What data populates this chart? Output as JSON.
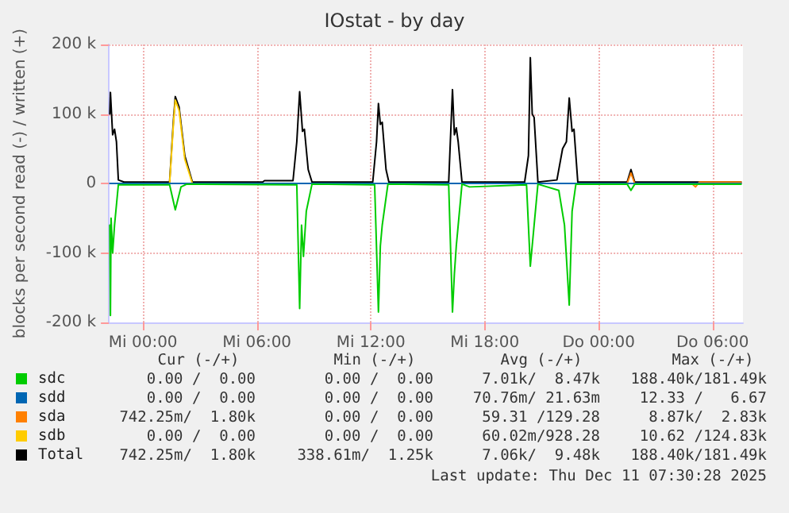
{
  "chart_data": {
    "type": "line",
    "title": "IOstat - by day",
    "ylabel": "blocks per second read (-) / written (+)",
    "xlim": [
      "2025-12-09T22:12",
      "2025-12-11T07:36"
    ],
    "xticks": [
      {
        "value": "2025-12-10T00:00",
        "label": "Mi 00:00"
      },
      {
        "value": "2025-12-10T06:00",
        "label": "Mi 06:00"
      },
      {
        "value": "2025-12-10T12:00",
        "label": "Mi 12:00"
      },
      {
        "value": "2025-12-10T18:00",
        "label": "Mi 18:00"
      },
      {
        "value": "2025-12-11T00:00",
        "label": "Do 00:00"
      },
      {
        "value": "2025-12-11T06:00",
        "label": "Do 06:00"
      }
    ],
    "ylim": [
      -200000,
      200000
    ],
    "yticks": [
      {
        "value": -200000,
        "label": "-200 k"
      },
      {
        "value": -100000,
        "label": "-100 k"
      },
      0,
      {
        "value": 100000,
        "label": "100 k"
      },
      {
        "value": 200000,
        "label": "200 k"
      }
    ],
    "grid": true,
    "legend": "bottom left",
    "marker": "none",
    "line_style": "solid",
    "series": [
      {
        "name": "sdc",
        "color": "#00cc00",
        "x": [
          "2025-12-09T22:15",
          "2025-12-09T22:17",
          "2025-12-09T22:19",
          "2025-12-09T22:24",
          "2025-12-09T22:30",
          "2025-12-09T22:42",
          "2025-12-10T01:24",
          "2025-12-10T01:42",
          "2025-12-10T02:00",
          "2025-12-10T02:18",
          "2025-12-10T08:06",
          "2025-12-10T08:15",
          "2025-12-10T08:21",
          "2025-12-10T08:27",
          "2025-12-10T08:36",
          "2025-12-10T08:54",
          "2025-12-10T12:12",
          "2025-12-10T12:24",
          "2025-12-10T12:30",
          "2025-12-10T12:36",
          "2025-12-10T12:54",
          "2025-12-10T16:06",
          "2025-12-10T16:18",
          "2025-12-10T16:24",
          "2025-12-10T16:30",
          "2025-12-10T16:48",
          "2025-12-10T17:12",
          "2025-12-10T20:12",
          "2025-12-10T20:24",
          "2025-12-10T20:36",
          "2025-12-10T20:48",
          "2025-12-10T21:54",
          "2025-12-10T22:12",
          "2025-12-10T22:27",
          "2025-12-10T22:36",
          "2025-12-10T22:48",
          "2025-12-11T01:30",
          "2025-12-11T01:42",
          "2025-12-11T01:54",
          "2025-12-11T07:30"
        ],
        "values": [
          -60000,
          -190000,
          -50000,
          -100000,
          -60000,
          -2000,
          -2000,
          -38000,
          -5000,
          -1000,
          -2000,
          -180000,
          -60000,
          -105000,
          -40000,
          -1000,
          -2000,
          -185000,
          -90000,
          -60000,
          -1000,
          -2000,
          -185000,
          -130000,
          -90000,
          -1000,
          -5000,
          -2000,
          -119000,
          -60000,
          -1000,
          -10000,
          -60000,
          -175000,
          -40000,
          -1000,
          -1000,
          -10000,
          -1000,
          -1000
        ]
      },
      {
        "name": "sdd",
        "color": "#0066b3",
        "x": [
          "2025-12-09T22:15",
          "2025-12-11T07:30"
        ],
        "values": [
          0,
          0
        ]
      },
      {
        "name": "sda",
        "color": "#ff8000",
        "x": [
          "2025-12-11T01:30",
          "2025-12-11T01:42",
          "2025-12-11T01:54",
          "2025-12-11T04:54",
          "2025-12-11T05:06",
          "2025-12-11T05:18",
          "2025-12-11T07:30"
        ],
        "values": [
          0,
          15000,
          0,
          0,
          -5000,
          2000,
          2000
        ]
      },
      {
        "name": "sdb",
        "color": "#ffcc00",
        "x": [
          "2025-12-10T01:24",
          "2025-12-10T01:36",
          "2025-12-10T01:42",
          "2025-12-10T01:54",
          "2025-12-10T02:12",
          "2025-12-10T02:36"
        ],
        "values": [
          0,
          85000,
          120000,
          105000,
          35000,
          0
        ]
      },
      {
        "name": "Total",
        "color": "#000000",
        "x": [
          "2025-12-09T22:15",
          "2025-12-09T22:17",
          "2025-12-09T22:24",
          "2025-12-09T22:30",
          "2025-12-09T22:36",
          "2025-12-09T22:42",
          "2025-12-09T23:00",
          "2025-12-10T01:24",
          "2025-12-10T01:36",
          "2025-12-10T01:42",
          "2025-12-10T01:54",
          "2025-12-10T02:12",
          "2025-12-10T02:36",
          "2025-12-10T06:18",
          "2025-12-10T06:24",
          "2025-12-10T07:54",
          "2025-12-10T08:06",
          "2025-12-10T08:15",
          "2025-12-10T08:24",
          "2025-12-10T08:30",
          "2025-12-10T08:42",
          "2025-12-10T08:54",
          "2025-12-10T12:06",
          "2025-12-10T12:18",
          "2025-12-10T12:24",
          "2025-12-10T12:30",
          "2025-12-10T12:36",
          "2025-12-10T12:48",
          "2025-12-10T12:57",
          "2025-12-10T16:06",
          "2025-12-10T16:18",
          "2025-12-10T16:24",
          "2025-12-10T16:30",
          "2025-12-10T16:36",
          "2025-12-10T16:48",
          "2025-12-10T20:06",
          "2025-12-10T20:18",
          "2025-12-10T20:24",
          "2025-12-10T20:30",
          "2025-12-10T20:36",
          "2025-12-10T20:48",
          "2025-12-10T21:48",
          "2025-12-10T22:06",
          "2025-12-10T22:18",
          "2025-12-10T22:27",
          "2025-12-10T22:36",
          "2025-12-10T22:42",
          "2025-12-10T22:54",
          "2025-12-11T01:30",
          "2025-12-11T01:42",
          "2025-12-11T01:54",
          "2025-12-11T07:30"
        ],
        "values": [
          100000,
          131000,
          70000,
          78000,
          60000,
          5000,
          2000,
          2000,
          90000,
          125000,
          110000,
          40000,
          2000,
          2000,
          4000,
          4000,
          60000,
          132000,
          75000,
          78000,
          20000,
          2000,
          2000,
          60000,
          115000,
          85000,
          88000,
          20000,
          2000,
          2000,
          135000,
          70000,
          80000,
          60000,
          2000,
          2000,
          40000,
          181000,
          100000,
          95000,
          2000,
          5000,
          50000,
          60000,
          123000,
          75000,
          78000,
          2000,
          2000,
          20000,
          2000,
          2000
        ]
      }
    ],
    "annotations": [
      "Cur (-/+)",
      "Min (-/+)",
      "Avg (-/+)",
      "Max (-/+)",
      "0.00 /  0.00",
      "0.00 /  0.00",
      "7.01k/  8.47k",
      "188.40k/181.49k",
      "0.00 /  0.00",
      "0.00 /  0.00",
      "70.76m/ 21.63m",
      "12.33 /   6.67",
      "742.25m/  1.80k",
      "0.00 /  0.00",
      "59.31 /129.28",
      "8.87k/  2.83k",
      "0.00 /  0.00",
      "0.00 /  0.00",
      "60.02m/928.28",
      "10.62 /124.83k",
      "742.25m/  1.80k",
      "338.61m/  1.25k",
      "7.06k/  9.48k",
      "188.40k/181.49k",
      "Last update: Thu Dec 11 07:30:28 2025"
    ]
  }
}
